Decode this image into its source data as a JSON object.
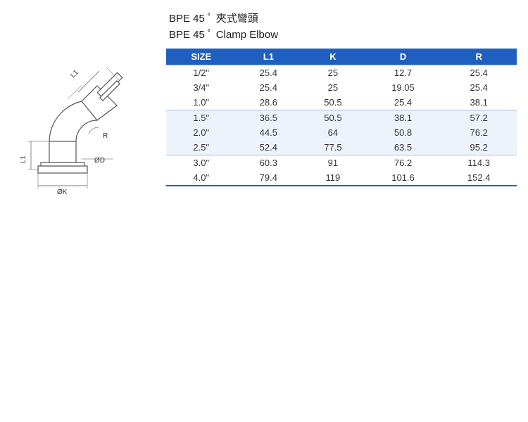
{
  "titles": {
    "zh": "BPE 45 ﾟ 夾式彎頭",
    "en": "BPE 45 ﾟ  Clamp  Elbow"
  },
  "table": {
    "header_bg": "#1f5fbf",
    "header_text_color": "#ffffff",
    "row_alt_bg": "#eef3fb",
    "border_color": "#a8bdd8",
    "columns": [
      "SIZE",
      "L1",
      "K",
      "D",
      "R"
    ],
    "groups": [
      {
        "rows": [
          {
            "SIZE": "1/2\"",
            "L1": "25.4",
            "K": "25",
            "D": "12.7",
            "R": "25.4"
          },
          {
            "SIZE": "3/4\"",
            "L1": "25.4",
            "K": "25",
            "D": "19.05",
            "R": "25.4"
          },
          {
            "SIZE": "1.0\"",
            "L1": "28.6",
            "K": "50.5",
            "D": "25.4",
            "R": "38.1"
          }
        ]
      },
      {
        "rows": [
          {
            "SIZE": "1.5\"",
            "L1": "36.5",
            "K": "50.5",
            "D": "38.1",
            "R": "57.2"
          },
          {
            "SIZE": "2.0\"",
            "L1": "44.5",
            "K": "64",
            "D": "50.8",
            "R": "76.2"
          },
          {
            "SIZE": "2.5\"",
            "L1": "52.4",
            "K": "77.5",
            "D": "63.5",
            "R": "95.2"
          }
        ]
      },
      {
        "rows": [
          {
            "SIZE": "3.0\"",
            "L1": "60.3",
            "K": "91",
            "D": "76.2",
            "R": "114.3"
          },
          {
            "SIZE": "4.0\"",
            "L1": "79.4",
            "K": "119",
            "D": "101.6",
            "R": "152.4"
          }
        ]
      }
    ]
  },
  "diagram": {
    "labels": {
      "L1_top": "L1",
      "L1_side": "L1",
      "R": "R",
      "D": "ØD",
      "K": "ØK"
    },
    "stroke_color": "#555555"
  }
}
